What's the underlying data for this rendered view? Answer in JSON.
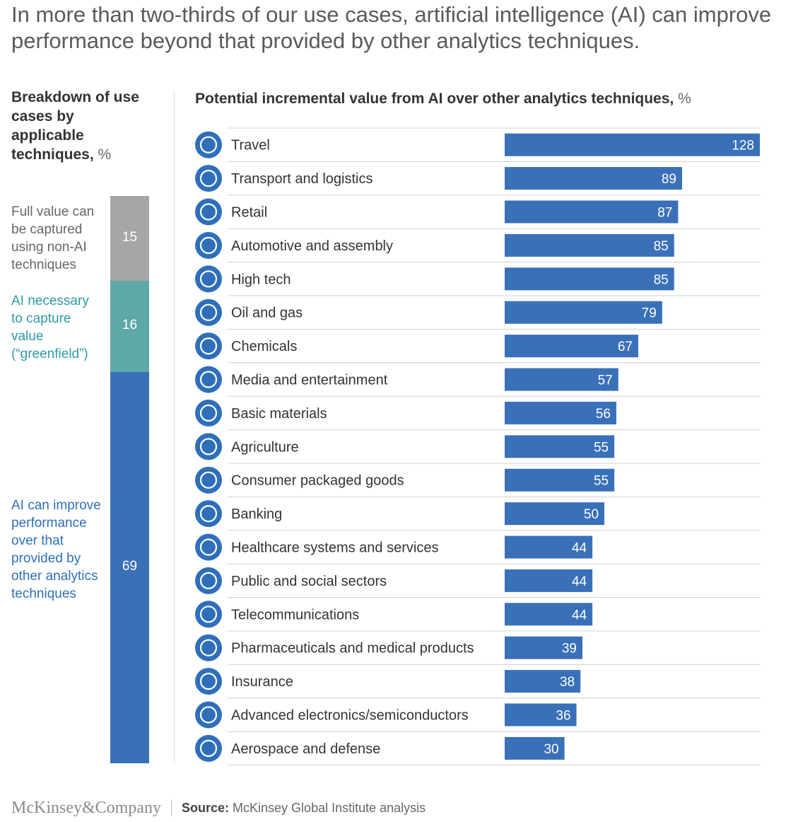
{
  "headline": "In more than two-thirds of our use cases, artificial intelligence (AI) can improve performance beyond that provided by other analytics techniques.",
  "breakdown": {
    "title": "Breakdown of use cases by applicable techniques,",
    "unit": "%",
    "segments": [
      {
        "name": "Full value can be captured using non-AI techniques",
        "value": 15,
        "color": "#a6a6a6",
        "note_color": "#666666"
      },
      {
        "name": "AI necessary to capture value (“greenfield”)",
        "value": 16,
        "color": "#5fa8a8",
        "note_color": "#2e9aa6"
      },
      {
        "name": "AI can improve performance over that provided by other analytics techniques",
        "value": 69,
        "color": "#3a70b8",
        "note_color": "#2f6fba"
      }
    ]
  },
  "chart_data": {
    "type": "bar",
    "orientation": "horizontal",
    "title": "Potential incremental value from AI over other analytics techniques,",
    "unit": "%",
    "bar_color": "#3a70b8",
    "icon_color": "#2f6fba",
    "categories": [
      "Travel",
      "Transport and logistics",
      "Retail",
      "Automotive and assembly",
      "High tech",
      "Oil and gas",
      "Chemicals",
      "Media and entertainment",
      "Basic materials",
      "Agriculture",
      "Consumer packaged goods",
      "Banking",
      "Healthcare systems and services",
      "Public and social sectors",
      "Telecommunications",
      "Pharmaceuticals and medical products",
      "Insurance",
      "Advanced electronics/semiconductors",
      "Aerospace and defense"
    ],
    "values": [
      128,
      89,
      87,
      85,
      85,
      79,
      67,
      57,
      56,
      55,
      55,
      50,
      44,
      44,
      44,
      39,
      38,
      36,
      30
    ],
    "icons": [
      "airplane-icon",
      "truck-icon",
      "shopping-cart-icon",
      "car-chassis-icon",
      "satellite-dish-icon",
      "oil-pump-icon",
      "flask-icon",
      "directors-chair-icon",
      "hard-hat-icon",
      "cow-icon",
      "package-icon",
      "bank-icon",
      "doctor-icon",
      "handshake-icon",
      "cell-tower-icon",
      "pills-icon",
      "document-icon",
      "circuit-chip-icon",
      "plane-globe-icon"
    ],
    "xlim": [
      0,
      128
    ]
  },
  "footer": {
    "logo": "McKinsey&Company",
    "source_label": "Source:",
    "source_text": "McKinsey Global Institute analysis"
  }
}
